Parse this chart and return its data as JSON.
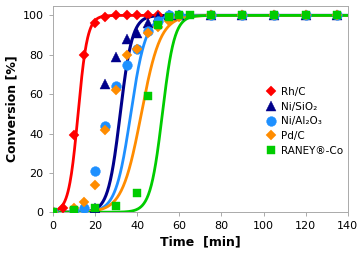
{
  "title": "",
  "xlabel": "Time  [min]",
  "ylabel": "Conversion [%]",
  "xlim": [
    0,
    140
  ],
  "ylim": [
    0,
    105
  ],
  "xticks": [
    0,
    20,
    40,
    60,
    80,
    100,
    120,
    140
  ],
  "yticks": [
    0,
    20,
    40,
    60,
    80,
    100
  ],
  "series": {
    "Rh/C": {
      "color": "#FF0000",
      "marker": "D",
      "markersize": 5.5,
      "linewidth": 2.0,
      "sigmoid_x0": 12.0,
      "sigmoid_k": 0.45,
      "x_pts": [
        0,
        5,
        10,
        15,
        20,
        25,
        30,
        35,
        40,
        45,
        50,
        60,
        75,
        90,
        105,
        120,
        135
      ],
      "y_pts": [
        0,
        2,
        39,
        80,
        96,
        99,
        100,
        100,
        100,
        100,
        100,
        100,
        100,
        100,
        100,
        100,
        100
      ]
    },
    "Ni/SiO2": {
      "color": "#00008B",
      "marker": "^",
      "markersize": 7,
      "linewidth": 2.2,
      "sigmoid_x0": 32.0,
      "sigmoid_k": 0.35,
      "x_pts": [
        0,
        10,
        20,
        25,
        30,
        35,
        40,
        45,
        50,
        55,
        60,
        75,
        90,
        105,
        120,
        135
      ],
      "y_pts": [
        0,
        1,
        2,
        65,
        79,
        88,
        91,
        96,
        99,
        100,
        100,
        100,
        100,
        100,
        100,
        100
      ]
    },
    "Ni/Al2O3": {
      "color": "#1E90FF",
      "marker": "o",
      "markersize": 7,
      "linewidth": 2.0,
      "sigmoid_x0": 37.0,
      "sigmoid_k": 0.28,
      "x_pts": [
        0,
        10,
        15,
        20,
        25,
        30,
        35,
        40,
        45,
        50,
        55,
        60,
        75,
        90,
        105,
        120,
        135
      ],
      "y_pts": [
        0,
        1,
        2,
        21,
        44,
        64,
        75,
        83,
        92,
        97,
        100,
        100,
        100,
        100,
        100,
        100,
        100
      ]
    },
    "Pd/C": {
      "color": "#FF8C00",
      "marker": "D",
      "markersize": 5.5,
      "linewidth": 2.0,
      "sigmoid_x0": 42.0,
      "sigmoid_k": 0.22,
      "x_pts": [
        0,
        10,
        15,
        20,
        25,
        30,
        35,
        40,
        45,
        50,
        55,
        60,
        75,
        90,
        105,
        120,
        135
      ],
      "y_pts": [
        0,
        2,
        5,
        14,
        42,
        62,
        80,
        83,
        91,
        94,
        97,
        99,
        100,
        100,
        100,
        100,
        100
      ]
    },
    "RANEY-Co": {
      "color": "#00CC00",
      "marker": "s",
      "markersize": 6,
      "linewidth": 2.0,
      "sigmoid_x0": 52.0,
      "sigmoid_k": 0.35,
      "x_pts": [
        0,
        10,
        20,
        30,
        40,
        45,
        50,
        55,
        60,
        65,
        75,
        90,
        105,
        120,
        135
      ],
      "y_pts": [
        0,
        1,
        2,
        3,
        10,
        59,
        95,
        99,
        100,
        100,
        100,
        100,
        100,
        100,
        100
      ]
    }
  },
  "legend_labels": {
    "Rh/C": "Rh/C",
    "Ni/SiO2": "Ni/SiO₂",
    "Ni/Al2O3": "Ni/Al₂O₃",
    "Pd/C": "Pd/C",
    "RANEY-Co": "RANEY®-Co"
  }
}
